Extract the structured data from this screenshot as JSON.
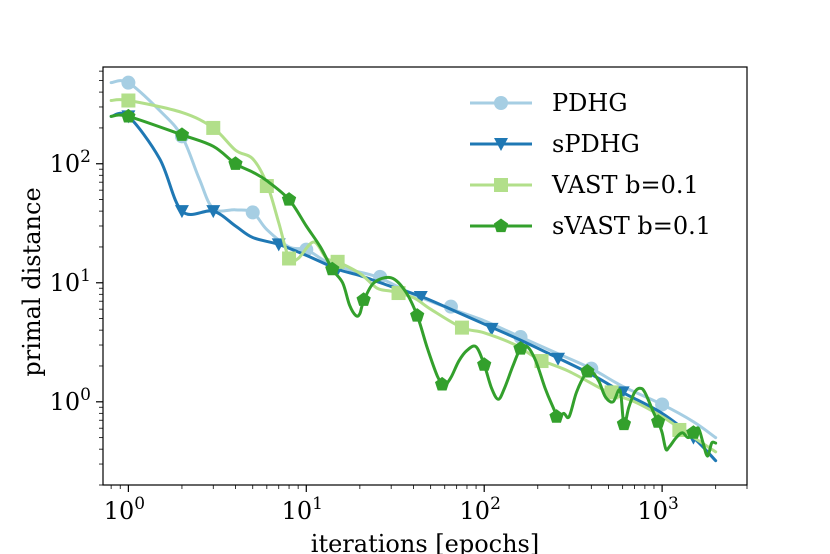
{
  "chart_data": {
    "type": "line",
    "title": "",
    "xlabel": "iterations [epochs]",
    "ylabel": "primal distance",
    "xscale": "log",
    "yscale": "log",
    "xlim": [
      0.72,
      3000
    ],
    "ylim": [
      0.2,
      650
    ],
    "xticks": [
      {
        "value": 1,
        "base": "10",
        "exp": "0"
      },
      {
        "value": 10,
        "base": "10",
        "exp": "1"
      },
      {
        "value": 100,
        "base": "10",
        "exp": "2"
      },
      {
        "value": 1000,
        "base": "10",
        "exp": "3"
      }
    ],
    "yticks": [
      {
        "value": 1,
        "base": "10",
        "exp": "0"
      },
      {
        "value": 10,
        "base": "10",
        "exp": "1"
      },
      {
        "value": 100,
        "base": "10",
        "exp": "2"
      }
    ],
    "legend_position": "top-right",
    "series": [
      {
        "name": "PDHG",
        "color": "#a6cee3",
        "marker": "circle",
        "line": [
          [
            0.8,
            480
          ],
          [
            1,
            480
          ],
          [
            1.5,
            280
          ],
          [
            2,
            170
          ],
          [
            2.5,
            75
          ],
          [
            3,
            42
          ],
          [
            4,
            41
          ],
          [
            5,
            39
          ],
          [
            6,
            28
          ],
          [
            8,
            20
          ],
          [
            10,
            19
          ],
          [
            13,
            15
          ],
          [
            17,
            13
          ],
          [
            25,
            11.2
          ],
          [
            40,
            8
          ],
          [
            60,
            6.3
          ],
          [
            100,
            4.8
          ],
          [
            160,
            3.5
          ],
          [
            250,
            2.6
          ],
          [
            400,
            1.9
          ],
          [
            600,
            1.35
          ],
          [
            1000,
            0.95
          ],
          [
            1500,
            0.68
          ],
          [
            2000,
            0.5
          ]
        ],
        "markers": [
          [
            1,
            480
          ],
          [
            2,
            170
          ],
          [
            5,
            39
          ],
          [
            10,
            19
          ],
          [
            26,
            11.2
          ],
          [
            65,
            6.3
          ],
          [
            160,
            3.5
          ],
          [
            400,
            1.9
          ],
          [
            1000,
            0.95
          ]
        ]
      },
      {
        "name": "sPDHG",
        "color": "#1f78b4",
        "marker": "triangle-down",
        "line": [
          [
            0.8,
            250
          ],
          [
            1,
            250
          ],
          [
            1.5,
            110
          ],
          [
            2,
            40
          ],
          [
            3,
            40
          ],
          [
            4,
            30
          ],
          [
            5,
            24
          ],
          [
            7,
            21
          ],
          [
            10,
            17
          ],
          [
            15,
            13
          ],
          [
            20,
            11.5
          ],
          [
            30,
            9.3
          ],
          [
            45,
            7.6
          ],
          [
            70,
            5.7
          ],
          [
            100,
            4.5
          ],
          [
            160,
            3.3
          ],
          [
            250,
            2.4
          ],
          [
            400,
            1.7
          ],
          [
            600,
            1.2
          ],
          [
            1000,
            0.8
          ],
          [
            1500,
            0.5
          ],
          [
            2000,
            0.32
          ]
        ],
        "markers": [
          [
            1,
            250
          ],
          [
            2,
            40
          ],
          [
            3,
            40
          ],
          [
            7,
            21
          ],
          [
            15,
            13
          ],
          [
            44,
            7.6
          ],
          [
            110,
            4.1
          ],
          [
            260,
            2.3
          ],
          [
            600,
            1.2
          ],
          [
            1500,
            0.5
          ]
        ]
      },
      {
        "name": "VAST b=0.1",
        "color": "#b2df8a",
        "marker": "square",
        "line": [
          [
            0.8,
            340
          ],
          [
            1,
            340
          ],
          [
            2,
            270
          ],
          [
            3,
            200
          ],
          [
            4,
            130
          ],
          [
            5,
            110
          ],
          [
            6,
            68
          ],
          [
            7,
            32
          ],
          [
            8,
            16
          ],
          [
            9,
            16
          ],
          [
            11,
            22
          ],
          [
            13,
            16
          ],
          [
            15,
            15
          ],
          [
            20,
            12
          ],
          [
            25,
            9
          ],
          [
            30,
            8.5
          ],
          [
            40,
            7.5
          ],
          [
            50,
            6
          ],
          [
            75,
            4.2
          ],
          [
            100,
            3.8
          ],
          [
            150,
            3
          ],
          [
            200,
            2.3
          ],
          [
            300,
            1.8
          ],
          [
            500,
            1.2
          ],
          [
            700,
            1
          ],
          [
            1000,
            0.75
          ],
          [
            1300,
            0.58
          ],
          [
            2000,
            0.38
          ]
        ],
        "markers": [
          [
            1,
            340
          ],
          [
            3,
            200
          ],
          [
            6,
            65
          ],
          [
            8,
            16
          ],
          [
            15,
            15
          ],
          [
            33,
            8.2
          ],
          [
            75,
            4.2
          ],
          [
            210,
            2.2
          ],
          [
            520,
            1.2
          ],
          [
            1250,
            0.58
          ]
        ]
      },
      {
        "name": "sVAST b=0.1",
        "color": "#33a02c",
        "marker": "pentagon",
        "line": [
          [
            0.8,
            250
          ],
          [
            1,
            250
          ],
          [
            2,
            175
          ],
          [
            3,
            140
          ],
          [
            4,
            100
          ],
          [
            5,
            85
          ],
          [
            6,
            72
          ],
          [
            8,
            50
          ],
          [
            10,
            30
          ],
          [
            12,
            20
          ],
          [
            14,
            13
          ],
          [
            16,
            10
          ],
          [
            17.5,
            6.5
          ],
          [
            19,
            5.3
          ],
          [
            20,
            5.5
          ],
          [
            21,
            7
          ],
          [
            24,
            10
          ],
          [
            30,
            11
          ],
          [
            36,
            8.5
          ],
          [
            42,
            5.3
          ],
          [
            48,
            2.8
          ],
          [
            55,
            1.6
          ],
          [
            60,
            1.4
          ],
          [
            65,
            1.6
          ],
          [
            72,
            2.2
          ],
          [
            80,
            2.7
          ],
          [
            90,
            2.9
          ],
          [
            100,
            2.05
          ],
          [
            110,
            1.3
          ],
          [
            120,
            1.05
          ],
          [
            130,
            1.3
          ],
          [
            145,
            2
          ],
          [
            160,
            2.8
          ],
          [
            175,
            2.9
          ],
          [
            195,
            2.2
          ],
          [
            220,
            1.3
          ],
          [
            240,
            0.95
          ],
          [
            260,
            0.75
          ],
          [
            280,
            0.8
          ],
          [
            300,
            0.75
          ],
          [
            330,
            1.2
          ],
          [
            370,
            1.7
          ],
          [
            400,
            1.8
          ],
          [
            440,
            1.5
          ],
          [
            480,
            1.1
          ],
          [
            530,
            1.0
          ],
          [
            580,
            1.25
          ],
          [
            610,
            0.65
          ],
          [
            650,
            0.9
          ],
          [
            700,
            1.2
          ],
          [
            750,
            1.3
          ],
          [
            800,
            1.2
          ],
          [
            900,
            0.8
          ],
          [
            950,
            0.68
          ],
          [
            1000,
            0.55
          ],
          [
            1050,
            0.4
          ],
          [
            1100,
            0.42
          ],
          [
            1200,
            0.5
          ],
          [
            1300,
            0.55
          ],
          [
            1400,
            0.5
          ],
          [
            1500,
            0.55
          ],
          [
            1600,
            0.6
          ],
          [
            1700,
            0.45
          ],
          [
            1800,
            0.35
          ],
          [
            1900,
            0.45
          ],
          [
            2000,
            0.45
          ]
        ],
        "markers": [
          [
            1,
            250
          ],
          [
            2,
            175
          ],
          [
            4,
            100
          ],
          [
            8,
            50
          ],
          [
            14,
            13
          ],
          [
            21,
            7.2
          ],
          [
            42,
            5.3
          ],
          [
            58,
            1.4
          ],
          [
            100,
            2.05
          ],
          [
            160,
            2.8
          ],
          [
            255,
            0.75
          ],
          [
            380,
            1.8
          ],
          [
            610,
            0.65
          ],
          [
            950,
            0.68
          ],
          [
            1500,
            0.55
          ]
        ]
      }
    ]
  }
}
